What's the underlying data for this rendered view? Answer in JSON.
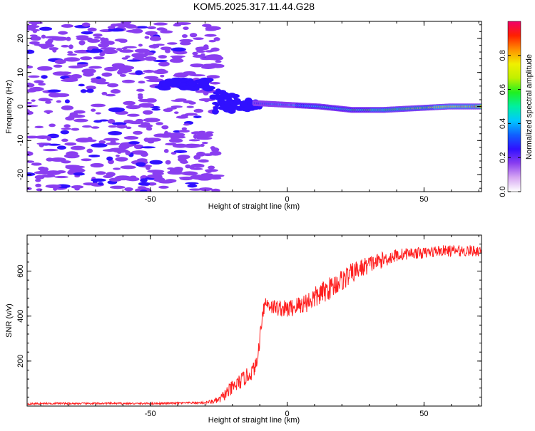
{
  "title": "KOM5.2025.317.11.44.G28",
  "chart_data": [
    {
      "type": "heatmap",
      "name": "spectrogram",
      "title": "KOM5.2025.317.11.44.G28",
      "xlabel": "Height of straight line (km)",
      "ylabel": "Frequency (Hz)",
      "xlim": [
        -95,
        71
      ],
      "ylim": [
        -25,
        25
      ],
      "xticks": [
        -50,
        0,
        50
      ],
      "yticks": [
        -20,
        -10,
        0,
        10,
        20
      ],
      "colorbar": {
        "label": "Normalized spectral amplitude",
        "range": [
          0,
          1
        ],
        "ticks": [
          "0.0",
          "0.2",
          "0.4",
          "0.6",
          "0.8"
        ],
        "colors": [
          "#ffffff",
          "#d6a6f2",
          "#8a3ef0",
          "#3010ff",
          "#1060ff",
          "#00c8ff",
          "#00f0a0",
          "#20f020",
          "#c0f000",
          "#f0f000",
          "#ff9000",
          "#ff2000",
          "#f0006a"
        ]
      },
      "features": [
        {
          "name": "noise",
          "x_range": [
            -95,
            -25
          ],
          "f_range": [
            -25,
            25
          ],
          "amplitude": 0.15
        },
        {
          "name": "patch",
          "x_range": [
            -45,
            -28
          ],
          "f_range": [
            5,
            8
          ],
          "amplitude": 0.22
        },
        {
          "name": "onset",
          "x_range": [
            -27,
            -10
          ],
          "f_range": [
            -5,
            8
          ],
          "amplitude": 0.25
        },
        {
          "name": "signal",
          "x_range": [
            -12,
            71
          ],
          "center_hz": [
            1,
            0.5,
            0,
            -1,
            -1,
            -0.5,
            0,
            0
          ],
          "amplitude": [
            0.3,
            0.35,
            0.45,
            0.5,
            0.55,
            0.6,
            0.75,
            0.85
          ]
        }
      ]
    },
    {
      "type": "line",
      "name": "snr",
      "xlabel": "Height of straight line (km)",
      "ylabel": "SNR (v/v)",
      "xlim": [
        -95,
        71
      ],
      "ylim": [
        0,
        760
      ],
      "xticks": [
        -50,
        0,
        50
      ],
      "yticks": [
        200,
        400,
        600
      ],
      "color": "#ff2020",
      "x": [
        -95,
        -85,
        -75,
        -65,
        -55,
        -45,
        -35,
        -30,
        -25,
        -22,
        -20,
        -18,
        -15,
        -13,
        -11,
        -10,
        -9,
        -8,
        -5,
        0,
        5,
        10,
        15,
        20,
        25,
        30,
        35,
        40,
        45,
        50,
        55,
        60,
        65,
        71
      ],
      "y": [
        10,
        12,
        11,
        12,
        11,
        12,
        14,
        15,
        25,
        60,
        80,
        100,
        130,
        150,
        190,
        300,
        420,
        460,
        440,
        430,
        450,
        480,
        520,
        560,
        600,
        630,
        650,
        670,
        680,
        680,
        690,
        690,
        690,
        690
      ],
      "noise_amplitude": [
        8,
        8,
        8,
        8,
        8,
        8,
        8,
        10,
        30,
        60,
        70,
        70,
        70,
        70,
        60,
        70,
        80,
        70,
        70,
        80,
        90,
        100,
        100,
        100,
        90,
        80,
        70,
        60,
        50,
        50,
        50,
        50,
        50,
        50
      ]
    }
  ]
}
